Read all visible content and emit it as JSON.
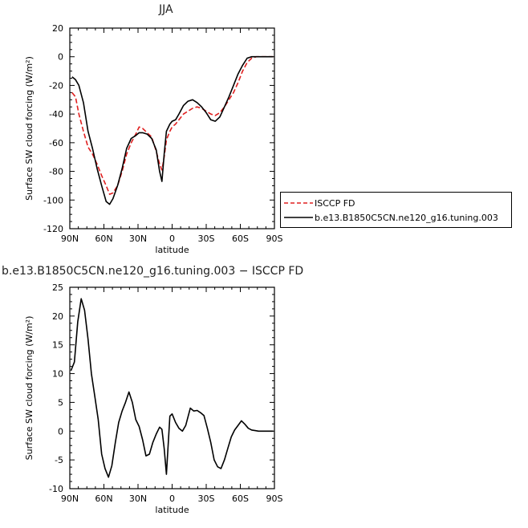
{
  "chart_data": [
    {
      "type": "line",
      "title": "JJA",
      "xlabel": "latitude",
      "ylabel": "Surface SW cloud forcing (W/m²)",
      "xlim": [
        90,
        -90
      ],
      "ylim": [
        -120,
        20
      ],
      "x_ticks": [
        90,
        60,
        30,
        0,
        -30,
        -60,
        -90
      ],
      "x_tick_labels": [
        "90N",
        "60N",
        "30N",
        "0",
        "30S",
        "60S",
        "90S"
      ],
      "y_ticks": [
        20,
        0,
        -20,
        -40,
        -60,
        -80,
        -100,
        -120
      ],
      "legend": "right",
      "series": [
        {
          "name": "ISCCP FD",
          "color": "#e02020",
          "dash": true,
          "x": [
            88,
            85,
            82,
            78,
            74,
            70,
            66,
            62,
            58,
            55,
            52,
            48,
            44,
            40,
            36,
            32,
            29,
            26,
            22,
            18,
            14,
            11,
            9,
            7,
            5,
            2,
            0,
            -3,
            -6,
            -10,
            -14,
            -18,
            -22,
            -26,
            -30,
            -34,
            -38,
            -42,
            -46,
            -50,
            -54,
            -58,
            -62,
            -66,
            -70,
            -74,
            -78,
            -82,
            -86,
            -89
          ],
          "y": [
            -25,
            -28,
            -40,
            -52,
            -63,
            -68,
            -75,
            -83,
            -90,
            -96,
            -95,
            -90,
            -80,
            -68,
            -60,
            -54,
            -49,
            -50,
            -53,
            -56,
            -66,
            -75,
            -79,
            -70,
            -58,
            -52,
            -49,
            -47,
            -44,
            -40,
            -38,
            -36,
            -35,
            -36,
            -38,
            -40,
            -41,
            -39,
            -35,
            -30,
            -25,
            -18,
            -10,
            -4,
            -1,
            0,
            0,
            0,
            0,
            0
          ]
        },
        {
          "name": "b.e13.B1850C5CN.ne120_g16.tuning.003",
          "color": "#000000",
          "dash": false,
          "x": [
            88,
            85,
            82,
            78,
            74,
            70,
            66,
            62,
            58,
            55,
            52,
            48,
            44,
            40,
            36,
            32,
            29,
            26,
            22,
            18,
            14,
            11,
            9,
            7,
            5,
            2,
            0,
            -3,
            -6,
            -10,
            -14,
            -18,
            -22,
            -26,
            -30,
            -34,
            -38,
            -42,
            -46,
            -50,
            -54,
            -58,
            -62,
            -66,
            -70,
            -74,
            -78,
            -82,
            -86,
            -89
          ],
          "y": [
            -14,
            -16,
            -20,
            -32,
            -52,
            -64,
            -78,
            -90,
            -101,
            -103,
            -99,
            -90,
            -78,
            -64,
            -57,
            -55,
            -53,
            -53,
            -54,
            -57,
            -65,
            -80,
            -87,
            -68,
            -52,
            -47,
            -45,
            -44,
            -40,
            -34,
            -31,
            -30,
            -32,
            -35,
            -39,
            -44,
            -45,
            -42,
            -35,
            -28,
            -20,
            -12,
            -6,
            -1,
            0,
            0,
            0,
            0,
            0,
            0
          ]
        }
      ]
    },
    {
      "type": "line",
      "title": "b.e13.B1850C5CN.ne120_g16.tuning.003 − ISCCP FD",
      "xlabel": "latitude",
      "ylabel": "Surface SW cloud forcing (W/m²)",
      "xlim": [
        90,
        -90
      ],
      "ylim": [
        -10,
        25
      ],
      "x_ticks": [
        90,
        60,
        30,
        0,
        -30,
        -60,
        -90
      ],
      "x_tick_labels": [
        "90N",
        "60N",
        "30N",
        "0",
        "30S",
        "60S",
        "90S"
      ],
      "y_ticks": [
        25,
        20,
        15,
        10,
        5,
        0,
        -5,
        -10
      ],
      "series": [
        {
          "color": "#000000",
          "dash": false,
          "x": [
            89,
            86,
            83,
            80,
            77,
            74,
            71,
            68,
            65,
            62,
            59,
            56,
            53,
            50,
            47,
            44,
            41,
            38,
            35,
            32,
            29,
            26,
            23,
            20,
            17,
            14,
            11,
            9,
            7,
            5,
            2,
            0,
            -3,
            -6,
            -9,
            -12,
            -14,
            -16,
            -19,
            -22,
            -25,
            -28,
            -31,
            -34,
            -37,
            -40,
            -43,
            -46,
            -49,
            -52,
            -55,
            -58,
            -61,
            -64,
            -67,
            -70,
            -73,
            -76,
            -79,
            -82,
            -86,
            -89
          ],
          "y": [
            10.5,
            12,
            19,
            23,
            21,
            16,
            10,
            6,
            2,
            -4,
            -6.5,
            -8,
            -6,
            -2,
            1.5,
            3.5,
            5,
            6.8,
            5,
            2,
            0.8,
            -1.5,
            -4.3,
            -4,
            -2,
            -0.5,
            0.7,
            0.3,
            -3,
            -7.5,
            2.6,
            3,
            1.5,
            0.5,
            0,
            1,
            2.5,
            4,
            3.5,
            3.6,
            3.2,
            2.7,
            0.5,
            -2,
            -5,
            -6.2,
            -6.5,
            -5,
            -3,
            -1,
            0.2,
            1,
            1.8,
            1.2,
            0.5,
            0.2,
            0.1,
            0,
            0,
            0,
            0,
            0
          ]
        }
      ]
    }
  ]
}
